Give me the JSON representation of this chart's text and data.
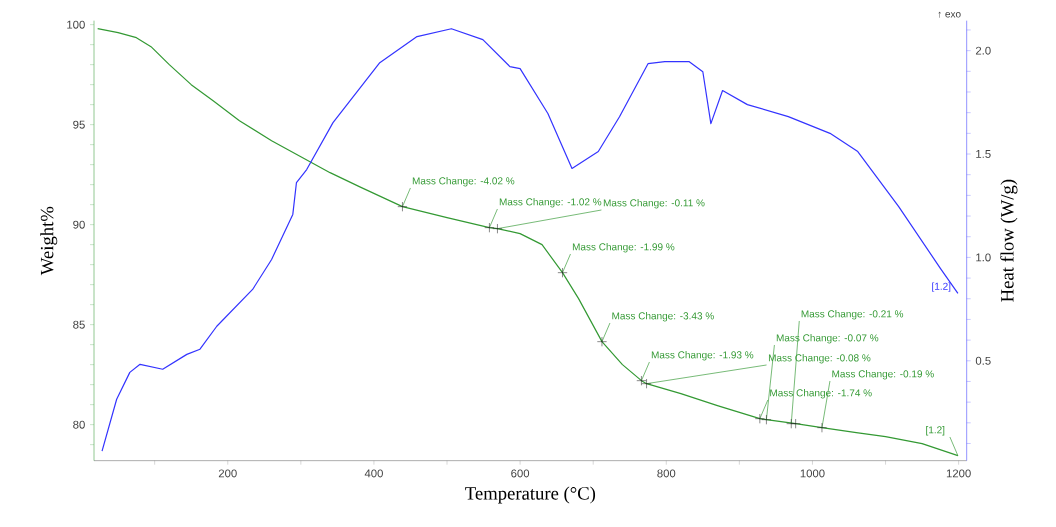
{
  "chart_data": {
    "type": "line",
    "xlabel": "Temperature (°C)",
    "ylabel": "Weight%",
    "y2label": "Heat flow (W/g)",
    "xlim": [
      17,
      1211
    ],
    "ylim": [
      78.2,
      100.2
    ],
    "y2lim": [
      0.017,
      2.145
    ],
    "xticks": [
      {
        "value": 100,
        "label": null
      },
      200,
      {
        "value": 300,
        "label": null
      },
      400,
      {
        "value": 500,
        "label": null
      },
      600,
      {
        "value": 700,
        "label": null
      },
      800,
      {
        "value": 900,
        "label": null
      },
      1000,
      {
        "value": 1100,
        "label": null
      },
      1200
    ],
    "yticks": [
      {
        "value": 79,
        "label": null
      },
      80,
      {
        "value": 81,
        "label": null
      },
      {
        "value": 82,
        "label": null
      },
      {
        "value": 83,
        "label": null
      },
      {
        "value": 84,
        "label": null
      },
      85,
      {
        "value": 86,
        "label": null
      },
      {
        "value": 87,
        "label": null
      },
      {
        "value": 88,
        "label": null
      },
      {
        "value": 89,
        "label": null
      },
      90,
      {
        "value": 91,
        "label": null
      },
      {
        "value": 92,
        "label": null
      },
      {
        "value": 93,
        "label": null
      },
      {
        "value": 94,
        "label": null
      },
      95,
      {
        "value": 96,
        "label": null
      },
      {
        "value": 97,
        "label": null
      },
      {
        "value": 98,
        "label": null
      },
      {
        "value": 99,
        "label": null
      },
      100
    ],
    "y2ticks": [
      {
        "value": 0.1,
        "label": null
      },
      {
        "value": 0.2,
        "label": null
      },
      {
        "value": 0.3,
        "label": null
      },
      {
        "value": 0.4,
        "label": null
      },
      0.5,
      {
        "value": 0.6,
        "label": null
      },
      {
        "value": 0.7,
        "label": null
      },
      {
        "value": 0.8,
        "label": null
      },
      {
        "value": 0.9,
        "label": null
      },
      {
        "value": 1.0,
        "label": "1.0"
      },
      {
        "value": 1.1,
        "label": null
      },
      {
        "value": 1.2,
        "label": null
      },
      {
        "value": 1.3,
        "label": null
      },
      {
        "value": 1.4,
        "label": null
      },
      1.5,
      {
        "value": 1.6,
        "label": null
      },
      {
        "value": 1.7,
        "label": null
      },
      {
        "value": 1.8,
        "label": null
      },
      {
        "value": 1.9,
        "label": null
      },
      {
        "value": 2.0,
        "label": "2.0"
      },
      {
        "value": 2.1,
        "label": null
      }
    ],
    "series": [
      {
        "color": "#339933",
        "x": [
          22,
          50,
          75,
          95,
          120,
          150,
          180,
          216,
          260,
          300,
          340,
          380,
          439,
          500,
          558,
          569,
          600,
          630,
          658,
          680,
          712,
          740,
          766,
          773,
          820,
          870,
          928,
          937,
          977,
          1013,
          1060,
          1100,
          1150,
          1199
        ],
        "values": [
          99.8,
          99.6,
          99.35,
          98.9,
          98.0,
          97.0,
          96.2,
          95.2,
          94.2,
          93.4,
          92.6,
          91.9,
          90.9,
          90.35,
          89.85,
          89.8,
          89.55,
          89.0,
          87.6,
          86.3,
          84.15,
          83.0,
          82.2,
          82.05,
          81.55,
          80.95,
          80.3,
          80.25,
          80.05,
          79.85,
          79.6,
          79.4,
          79.05,
          78.45
        ]
      },
      {
        "axis": "y2",
        "color": "#3333ff",
        "x": [
          28,
          48,
          66,
          80,
          111,
          144,
          162,
          185,
          234,
          260,
          289,
          294,
          308,
          344,
          408,
          459,
          506,
          549,
          586,
          600,
          638,
          671,
          707,
          736,
          775,
          798,
          831,
          850,
          861,
          877,
          911,
          967,
          1024,
          1062,
          1118,
          1175,
          1199
        ],
        "values": [
          0.063,
          0.314,
          0.444,
          0.483,
          0.459,
          0.531,
          0.556,
          0.667,
          0.845,
          0.99,
          1.208,
          1.362,
          1.425,
          1.652,
          1.942,
          2.068,
          2.106,
          2.053,
          1.923,
          1.913,
          1.696,
          1.43,
          1.512,
          1.68,
          1.937,
          1.947,
          1.947,
          1.898,
          1.647,
          1.807,
          1.739,
          1.681,
          1.6,
          1.512,
          1.246,
          0.947,
          0.826
        ]
      },
      {
        "type": "scatter",
        "marker": "cross",
        "color": "#222222",
        "x": [
          439,
          558,
          569,
          658,
          712,
          766,
          773,
          928,
          937,
          971,
          977,
          1013
        ],
        "values": [
          90.9,
          89.85,
          89.8,
          87.6,
          84.15,
          82.2,
          82.05,
          80.3,
          80.25,
          80.05,
          80.05,
          79.85
        ]
      }
    ],
    "annotations": [
      {
        "text": "Mass Change: -4.02 %",
        "x": 439,
        "y": 90.9
      },
      {
        "text": "Mass Change: -1.02 %",
        "x": 558,
        "y": 89.85
      },
      {
        "text": "Mass Change: -0.11 %",
        "x": 569,
        "y": 89.8
      },
      {
        "text": "Mass Change: -1.99 %",
        "x": 658,
        "y": 87.6
      },
      {
        "text": "Mass Change: -3.43 %",
        "x": 712,
        "y": 84.15
      },
      {
        "text": "Mass Change: -1.93 %",
        "x": 766,
        "y": 82.2
      },
      {
        "text": "Mass Change: -0.08 %",
        "x": 773,
        "y": 82.05
      },
      {
        "text": "Mass Change: -1.74 %",
        "x": 928,
        "y": 80.3
      },
      {
        "text": "Mass Change: -0.07 %",
        "x": 937,
        "y": 80.25
      },
      {
        "text": "Mass Change: -0.21 %",
        "x": 971,
        "y": 80.05
      },
      {
        "text": "Mass Change: -0.19 %",
        "x": 1013,
        "y": 79.85
      },
      {
        "text": "[1.2]",
        "x": 1199,
        "y": 78.45
      },
      "[1.2]",
      "↑ exo"
    ]
  }
}
